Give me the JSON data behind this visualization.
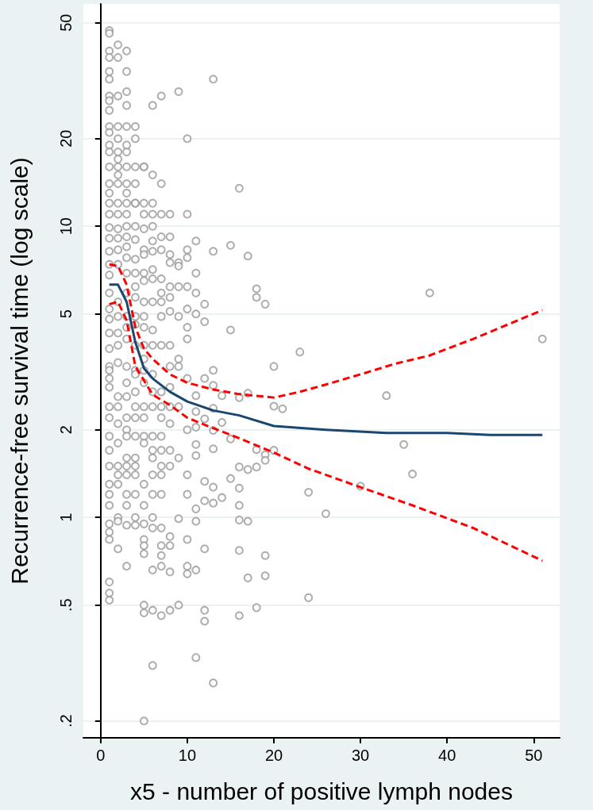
{
  "chart_data": {
    "type": "scatter",
    "xlabel": "x5 - number of positive lymph nodes",
    "ylabel": "Recurrence-free survival time (log scale)",
    "xlim": [
      -2,
      53
    ],
    "xticks": [
      0,
      10,
      20,
      30,
      40,
      50
    ],
    "ylim": [
      0.175,
      58
    ],
    "yticks": [
      {
        "value": 0.2,
        "label": ".2"
      },
      {
        "value": 0.5,
        "label": ".5"
      },
      1,
      2,
      5,
      10,
      20,
      50
    ],
    "log": "y",
    "grid": "y",
    "series": [
      {
        "color": "#999999",
        "marker": "circle",
        "x": [
          13,
          16,
          11,
          15,
          13,
          17,
          11,
          18,
          18,
          19,
          38,
          11,
          12,
          11,
          12,
          15,
          51,
          23,
          20,
          13,
          12,
          13,
          11,
          14,
          16,
          17,
          33,
          20,
          21,
          11,
          13,
          12,
          14,
          11,
          13,
          15,
          35,
          11,
          18,
          20,
          13,
          11,
          19,
          19,
          16,
          17,
          18,
          36,
          15,
          12,
          13,
          16,
          30,
          24,
          14,
          12,
          13,
          11,
          11,
          16,
          16,
          17,
          26,
          12,
          16,
          19,
          11,
          17,
          19,
          24,
          12,
          12,
          16,
          18,
          11,
          13,
          1,
          1,
          1,
          1,
          1,
          1,
          1,
          1,
          1,
          1,
          1,
          1,
          1,
          1,
          1,
          1,
          1,
          1,
          1,
          1,
          1,
          1,
          1,
          1,
          1,
          1,
          1,
          1,
          1,
          1,
          1,
          1,
          1,
          1,
          1,
          1,
          1,
          1,
          1,
          1,
          1,
          1,
          1,
          1,
          1,
          1,
          2,
          2,
          2,
          2,
          2,
          2,
          2,
          2,
          2,
          2,
          2,
          2,
          2,
          2,
          2,
          2,
          2,
          2,
          2,
          2,
          2,
          2,
          2,
          2,
          2,
          2,
          2,
          2,
          2,
          2,
          2,
          3,
          3,
          3,
          3,
          3,
          3,
          3,
          3,
          3,
          3,
          3,
          3,
          3,
          3,
          3,
          3,
          3,
          3,
          3,
          3,
          3,
          3,
          3,
          3,
          3,
          3,
          3,
          3,
          3,
          3,
          3,
          3,
          3,
          3,
          4,
          4,
          4,
          4,
          4,
          4,
          4,
          4,
          4,
          4,
          4,
          4,
          4,
          4,
          4,
          4,
          4,
          4,
          4,
          4,
          4,
          4,
          4,
          4,
          4,
          4,
          4,
          5,
          5,
          5,
          5,
          5,
          5,
          5,
          5,
          5,
          5,
          5,
          5,
          5,
          5,
          5,
          5,
          5,
          5,
          5,
          5,
          5,
          5,
          5,
          5,
          5,
          5,
          5,
          5,
          5,
          6,
          6,
          6,
          6,
          6,
          6,
          6,
          6,
          6,
          6,
          6,
          6,
          6,
          6,
          6,
          6,
          6,
          6,
          6,
          6,
          6,
          6,
          6,
          6,
          6,
          7,
          7,
          7,
          7,
          7,
          7,
          7,
          7,
          7,
          7,
          7,
          7,
          7,
          7,
          7,
          7,
          7,
          7,
          7,
          7,
          7,
          7,
          7,
          8,
          8,
          8,
          8,
          8,
          8,
          8,
          8,
          8,
          8,
          8,
          8,
          8,
          8,
          8,
          8,
          8,
          8,
          9,
          9,
          9,
          9,
          9,
          9,
          9,
          9,
          9,
          9,
          9,
          10,
          10,
          10,
          10,
          10,
          10,
          10,
          10,
          10,
          10,
          10,
          10,
          10,
          10,
          10
        ],
        "values": [
          32,
          13.5,
          8.9,
          8.6,
          8.2,
          7.9,
          6.9,
          6.1,
          5.7,
          5.4,
          5.9,
          5.9,
          5.4,
          5.0,
          4.7,
          4.4,
          4.1,
          3.7,
          3.3,
          3.2,
          3.0,
          2.84,
          2.62,
          2.62,
          2.58,
          2.67,
          2.62,
          2.41,
          2.36,
          2.31,
          2.37,
          2.18,
          2.12,
          2.04,
          1.99,
          1.86,
          1.78,
          1.78,
          1.71,
          1.7,
          1.72,
          1.63,
          1.64,
          1.57,
          1.49,
          1.46,
          1.49,
          1.41,
          1.36,
          1.33,
          1.27,
          1.26,
          1.28,
          1.22,
          1.17,
          1.14,
          1.12,
          1.07,
          0.97,
          1.1,
          0.98,
          0.97,
          1.03,
          0.78,
          0.77,
          0.74,
          0.66,
          0.62,
          0.63,
          0.53,
          0.48,
          0.44,
          0.46,
          0.49,
          0.33,
          0.27,
          47,
          46,
          40,
          38,
          34,
          32,
          28,
          27,
          25,
          22,
          21,
          19,
          18,
          16,
          14,
          13,
          12,
          11,
          9.9,
          9.1,
          8.2,
          7.4,
          6.8,
          5.9,
          5.2,
          4.8,
          4.3,
          3.8,
          3.3,
          3.2,
          3.0,
          2.8,
          2.4,
          2.2,
          1.9,
          1.7,
          1.5,
          1.3,
          1.2,
          1.1,
          0.95,
          0.89,
          0.84,
          0.6,
          0.55,
          0.52,
          42,
          38,
          28,
          22,
          20,
          18,
          17,
          16,
          15,
          14,
          12,
          11,
          9.8,
          9.1,
          8.3,
          7.4,
          5.5,
          4.9,
          4.3,
          3.9,
          3.4,
          2.6,
          2.4,
          2.1,
          1.8,
          1.5,
          1.4,
          1.3,
          1.0,
          0.97,
          0.78,
          40,
          34,
          29,
          26,
          22,
          19,
          18,
          16,
          14,
          13,
          12,
          11,
          10,
          9.2,
          8.5,
          7.8,
          6.9,
          5.9,
          4.9,
          4.5,
          4.1,
          3.3,
          2.9,
          2.6,
          2.2,
          2.0,
          1.9,
          1.6,
          1.5,
          1.4,
          1.2,
          1.1,
          0.94,
          0.68,
          22,
          20,
          16,
          14,
          12,
          12,
          10,
          9.0,
          7.7,
          6.9,
          6.2,
          5.7,
          4.9,
          4.6,
          3.9,
          3.2,
          3.1,
          2.7,
          2.4,
          2.2,
          1.9,
          1.6,
          1.5,
          1.4,
          1.2,
          1.0,
          0.94,
          16,
          16,
          12,
          11,
          9.8,
          8.3,
          8.0,
          6.9,
          6.5,
          5.5,
          4.9,
          4.5,
          3.9,
          3.5,
          3.2,
          2.9,
          2.4,
          2.2,
          1.9,
          1.8,
          1.3,
          1.1,
          0.95,
          0.84,
          0.8,
          0.75,
          0.5,
          0.47,
          0.2,
          26,
          15,
          12,
          11,
          10,
          8.9,
          8.2,
          7.1,
          6.6,
          5.5,
          4.4,
          3.9,
          3.1,
          2.7,
          2.4,
          1.9,
          1.7,
          1.6,
          1.4,
          1.2,
          1.0,
          0.92,
          0.66,
          0.48,
          0.31,
          28,
          14,
          11,
          9.2,
          8.3,
          6.6,
          5.9,
          5.5,
          4.9,
          3.9,
          2.7,
          2.4,
          2.2,
          1.9,
          1.7,
          1.5,
          1.4,
          1.2,
          0.92,
          0.8,
          0.74,
          0.68,
          0.46,
          11,
          9.2,
          8.0,
          7.5,
          6.2,
          5.7,
          5.1,
          3.9,
          3.3,
          2.8,
          2.4,
          2.1,
          1.7,
          1.5,
          0.86,
          0.8,
          0.65,
          0.48,
          29,
          7.5,
          7.3,
          6.2,
          4.9,
          3.5,
          3.3,
          2.4,
          1.6,
          0.99,
          0.5,
          20,
          11,
          8.3,
          7.8,
          6.2,
          5.2,
          4.5,
          4.1,
          3.0,
          2.0,
          1.4,
          1.2,
          0.84,
          0.68,
          0.64
        ]
      },
      {
        "type": "line",
        "color": "#1a476f",
        "marker": "none",
        "line_style": "solid",
        "x": [
          1,
          2,
          3,
          4,
          5,
          6,
          8,
          10,
          13,
          16,
          20,
          26,
          33,
          40,
          45,
          51
        ],
        "values": [
          6.3,
          6.3,
          5.5,
          4.0,
          3.25,
          3.0,
          2.7,
          2.5,
          2.33,
          2.24,
          2.06,
          2.0,
          1.95,
          1.95,
          1.92,
          1.92
        ]
      },
      {
        "type": "line",
        "color": "#ff0000",
        "marker": "none",
        "line_style": "dashed",
        "x": [
          1,
          2,
          3,
          4,
          5,
          6,
          8,
          10,
          13,
          16,
          20,
          23,
          26,
          30,
          34,
          38,
          43,
          51
        ],
        "values": [
          7.4,
          7.3,
          6.3,
          4.5,
          3.8,
          3.5,
          3.1,
          2.9,
          2.75,
          2.65,
          2.58,
          2.7,
          2.86,
          3.1,
          3.37,
          3.6,
          4.1,
          5.15
        ]
      },
      {
        "type": "line",
        "color": "#ff0000",
        "marker": "none",
        "line_style": "dashed",
        "x": [
          1,
          2,
          3,
          4,
          6,
          8,
          10,
          12,
          16,
          20,
          24,
          30,
          36,
          43,
          51
        ],
        "values": [
          5.4,
          5.5,
          4.75,
          3.3,
          2.64,
          2.43,
          2.2,
          2.08,
          1.87,
          1.67,
          1.47,
          1.27,
          1.1,
          0.92,
          0.71
        ]
      }
    ]
  }
}
